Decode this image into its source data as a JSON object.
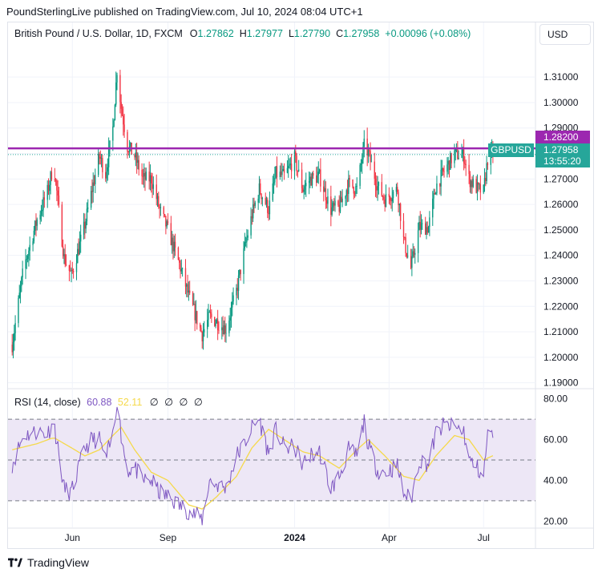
{
  "publisher": "PoundSterlingLive published on TradingView.com, Jul 10, 2024 08:04 UTC+1",
  "legend": {
    "title": "British Pound / U.S. Dollar, 1D, FXCM",
    "open_label": "O",
    "open": "1.27862",
    "high_label": "H",
    "high": "1.27977",
    "low_label": "L",
    "low": "1.27790",
    "close_label": "C",
    "close": "1.27958",
    "change": "+0.00096 (+0.08%)"
  },
  "currency": "USD",
  "rsi_legend": {
    "label": "RSI (14, close)",
    "rsi": "60.88",
    "ma": "52.11",
    "na": "∅ ∅ ∅ ∅"
  },
  "price_tags": {
    "line_value": "1.28200",
    "symbol": "GBPUSD",
    "last_price": "1.27958",
    "countdown": "13:55:20"
  },
  "footer": {
    "brand": "TradingView"
  },
  "colors": {
    "up": "#089981",
    "down": "#f23645",
    "resistance": "#9c27b0",
    "rsi": "#7e57c2",
    "rsi_ma": "#f5d94a",
    "rsi_band": "#ede7f6"
  },
  "chart_data": [
    {
      "type": "candlestick",
      "symbol": "GBPUSD",
      "x_ticks": [
        "Jun",
        "Sep",
        "2024",
        "Apr",
        "Jul"
      ],
      "y_ticks": [
        "1.19000",
        "1.20000",
        "1.21000",
        "1.22000",
        "1.23000",
        "1.24000",
        "1.25000",
        "1.26000",
        "1.27000",
        "1.28000",
        "1.29000",
        "1.30000",
        "1.31000"
      ],
      "ylim": [
        1.188,
        1.322
      ],
      "horizontal_line": 1.282,
      "last_price": 1.27958,
      "waypoints": [
        [
          "2023-04-04",
          1.205
        ],
        [
          "2023-04-15",
          1.235
        ],
        [
          "2023-04-28",
          1.254
        ],
        [
          "2023-05-08",
          1.265
        ],
        [
          "2023-05-14",
          1.276
        ],
        [
          "2023-05-24",
          1.239
        ],
        [
          "2023-05-31",
          1.232
        ],
        [
          "2023-06-13",
          1.252
        ],
        [
          "2023-06-20",
          1.266
        ],
        [
          "2023-06-27",
          1.279
        ],
        [
          "2023-07-03",
          1.272
        ],
        [
          "2023-07-10",
          1.29
        ],
        [
          "2023-07-14",
          1.313
        ],
        [
          "2023-07-18",
          1.298
        ],
        [
          "2023-07-24",
          1.283
        ],
        [
          "2023-07-31",
          1.279
        ],
        [
          "2023-08-08",
          1.27
        ],
        [
          "2023-08-16",
          1.27
        ],
        [
          "2023-08-24",
          1.258
        ],
        [
          "2023-09-01",
          1.25
        ],
        [
          "2023-09-14",
          1.234
        ],
        [
          "2023-09-21",
          1.224
        ],
        [
          "2023-10-04",
          1.209
        ],
        [
          "2023-10-11",
          1.216
        ],
        [
          "2023-10-18",
          1.214
        ],
        [
          "2023-10-27",
          1.211
        ],
        [
          "2023-11-06",
          1.226
        ],
        [
          "2023-11-14",
          1.243
        ],
        [
          "2023-11-21",
          1.256
        ],
        [
          "2023-11-28",
          1.266
        ],
        [
          "2023-12-07",
          1.258
        ],
        [
          "2023-12-14",
          1.272
        ],
        [
          "2023-12-22",
          1.271
        ],
        [
          "2024-01-01",
          1.278
        ],
        [
          "2024-01-09",
          1.266
        ],
        [
          "2024-01-16",
          1.27
        ],
        [
          "2024-01-25",
          1.271
        ],
        [
          "2024-02-05",
          1.258
        ],
        [
          "2024-02-13",
          1.259
        ],
        [
          "2024-02-22",
          1.268
        ],
        [
          "2024-03-01",
          1.266
        ],
        [
          "2024-03-08",
          1.283
        ],
        [
          "2024-03-12",
          1.28
        ],
        [
          "2024-03-21",
          1.267
        ],
        [
          "2024-03-28",
          1.262
        ],
        [
          "2024-04-09",
          1.266
        ],
        [
          "2024-04-15",
          1.246
        ],
        [
          "2024-04-22",
          1.235
        ],
        [
          "2024-04-30",
          1.251
        ],
        [
          "2024-05-09",
          1.251
        ],
        [
          "2024-05-16",
          1.267
        ],
        [
          "2024-05-24",
          1.273
        ],
        [
          "2024-06-03",
          1.28
        ],
        [
          "2024-06-12",
          1.279
        ],
        [
          "2024-06-17",
          1.27
        ],
        [
          "2024-06-25",
          1.266
        ],
        [
          "2024-07-01",
          1.265
        ],
        [
          "2024-07-05",
          1.278
        ],
        [
          "2024-07-10",
          1.2796
        ]
      ]
    },
    {
      "type": "line",
      "title": "RSI (14, close)",
      "y_ticks": [
        "20.00",
        "40.00",
        "60.00",
        "80.00"
      ],
      "ylim": [
        17,
        83
      ],
      "band": [
        30,
        70
      ],
      "midline": 50,
      "series": [
        {
          "name": "RSI",
          "values": [
            [
              "2023-04-04",
              48
            ],
            [
              "2023-04-15",
              62
            ],
            [
              "2023-04-28",
              64
            ],
            [
              "2023-05-08",
              63
            ],
            [
              "2023-05-14",
              69
            ],
            [
              "2023-05-24",
              36
            ],
            [
              "2023-05-31",
              34
            ],
            [
              "2023-06-13",
              56
            ],
            [
              "2023-06-20",
              60
            ],
            [
              "2023-06-27",
              60
            ],
            [
              "2023-07-03",
              50
            ],
            [
              "2023-07-10",
              62
            ],
            [
              "2023-07-14",
              80
            ],
            [
              "2023-07-18",
              62
            ],
            [
              "2023-07-24",
              45
            ],
            [
              "2023-07-31",
              46
            ],
            [
              "2023-08-08",
              40
            ],
            [
              "2023-08-16",
              40
            ],
            [
              "2023-08-24",
              34
            ],
            [
              "2023-09-01",
              32
            ],
            [
              "2023-09-14",
              27
            ],
            [
              "2023-09-21",
              25
            ],
            [
              "2023-10-04",
              21
            ],
            [
              "2023-10-11",
              40
            ],
            [
              "2023-10-18",
              38
            ],
            [
              "2023-10-27",
              36
            ],
            [
              "2023-11-06",
              52
            ],
            [
              "2023-11-14",
              58
            ],
            [
              "2023-11-21",
              66
            ],
            [
              "2023-11-28",
              70
            ],
            [
              "2023-12-07",
              53
            ],
            [
              "2023-12-14",
              65
            ],
            [
              "2023-12-22",
              56
            ],
            [
              "2024-01-01",
              56
            ],
            [
              "2024-01-09",
              48
            ],
            [
              "2024-01-16",
              52
            ],
            [
              "2024-01-25",
              54
            ],
            [
              "2024-02-05",
              36
            ],
            [
              "2024-02-13",
              42
            ],
            [
              "2024-02-22",
              55
            ],
            [
              "2024-03-01",
              52
            ],
            [
              "2024-03-08",
              69
            ],
            [
              "2024-03-12",
              57
            ],
            [
              "2024-03-21",
              45
            ],
            [
              "2024-03-28",
              44
            ],
            [
              "2024-04-09",
              47
            ],
            [
              "2024-04-15",
              34
            ],
            [
              "2024-04-22",
              30
            ],
            [
              "2024-04-30",
              50
            ],
            [
              "2024-05-09",
              48
            ],
            [
              "2024-05-16",
              63
            ],
            [
              "2024-05-24",
              67
            ],
            [
              "2024-06-03",
              66
            ],
            [
              "2024-06-12",
              64
            ],
            [
              "2024-06-17",
              50
            ],
            [
              "2024-06-25",
              46
            ],
            [
              "2024-07-01",
              42
            ],
            [
              "2024-07-05",
              63
            ],
            [
              "2024-07-10",
              60.88
            ]
          ]
        },
        {
          "name": "RSI MA",
          "values": [
            [
              "2023-04-04",
              55
            ],
            [
              "2023-04-28",
              58
            ],
            [
              "2023-05-14",
              61
            ],
            [
              "2023-05-31",
              56
            ],
            [
              "2023-06-13",
              52
            ],
            [
              "2023-06-27",
              55
            ],
            [
              "2023-07-10",
              62
            ],
            [
              "2023-07-18",
              66
            ],
            [
              "2023-07-31",
              55
            ],
            [
              "2023-08-16",
              44
            ],
            [
              "2023-09-01",
              40
            ],
            [
              "2023-09-21",
              28
            ],
            [
              "2023-10-04",
              26
            ],
            [
              "2023-10-18",
              32
            ],
            [
              "2023-11-06",
              42
            ],
            [
              "2023-11-21",
              56
            ],
            [
              "2023-12-07",
              65
            ],
            [
              "2023-12-22",
              60
            ],
            [
              "2024-01-09",
              54
            ],
            [
              "2024-01-25",
              52
            ],
            [
              "2024-02-13",
              46
            ],
            [
              "2024-03-01",
              55
            ],
            [
              "2024-03-12",
              60
            ],
            [
              "2024-03-28",
              52
            ],
            [
              "2024-04-15",
              42
            ],
            [
              "2024-04-30",
              40
            ],
            [
              "2024-05-16",
              52
            ],
            [
              "2024-06-03",
              62
            ],
            [
              "2024-06-17",
              60
            ],
            [
              "2024-07-01",
              50
            ],
            [
              "2024-07-10",
              52.11
            ]
          ]
        }
      ]
    }
  ]
}
